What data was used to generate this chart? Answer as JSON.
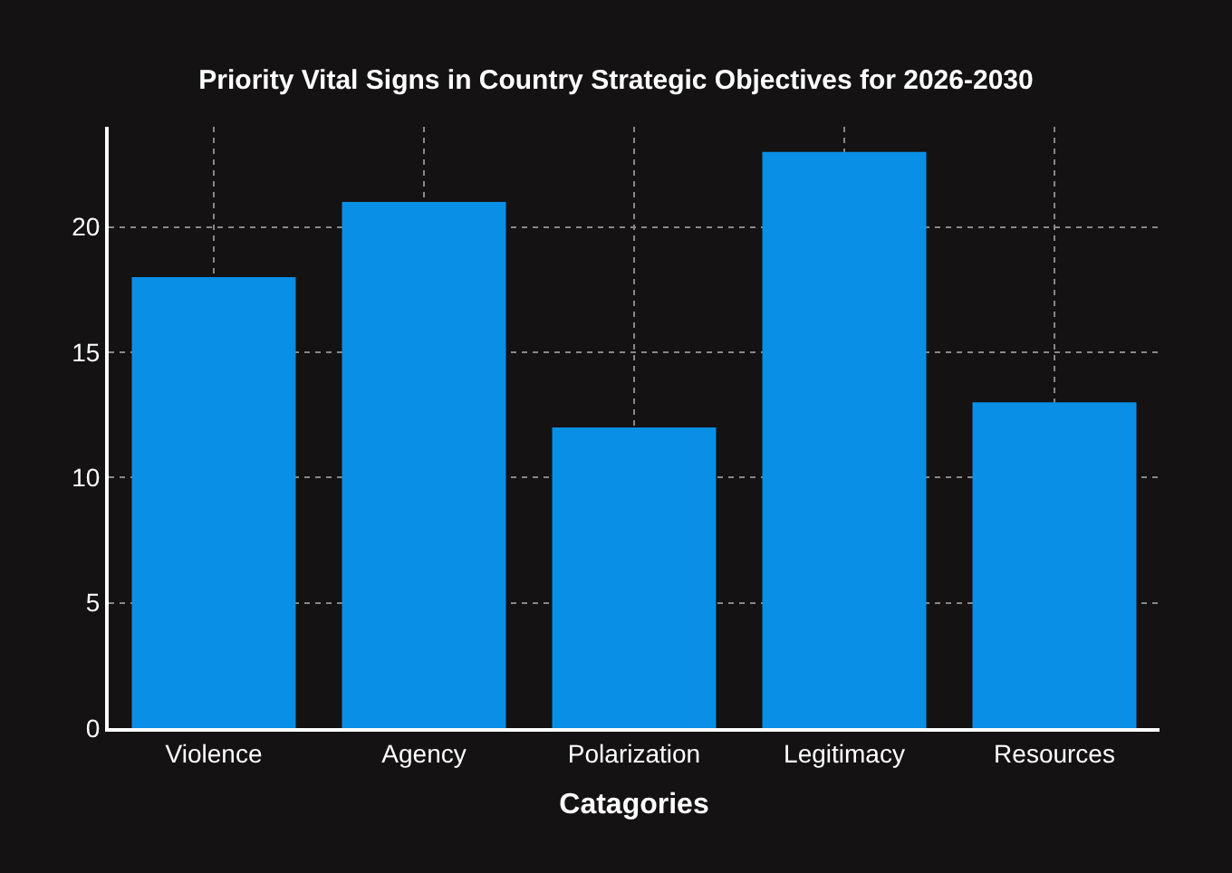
{
  "chart_data": {
    "type": "bar",
    "title": "Priority Vital Signs in Country Strategic Objectives for 2026-2030",
    "xlabel": "Catagories",
    "categories": [
      "Violence",
      "Agency",
      "Polarization",
      "Legitimacy",
      "Resources"
    ],
    "values": [
      18,
      21,
      12,
      23,
      13
    ],
    "color": "#0a8fe6",
    "ylim": [
      0,
      24
    ],
    "yticks": [
      0,
      5,
      10,
      15,
      20
    ],
    "grid": true
  }
}
